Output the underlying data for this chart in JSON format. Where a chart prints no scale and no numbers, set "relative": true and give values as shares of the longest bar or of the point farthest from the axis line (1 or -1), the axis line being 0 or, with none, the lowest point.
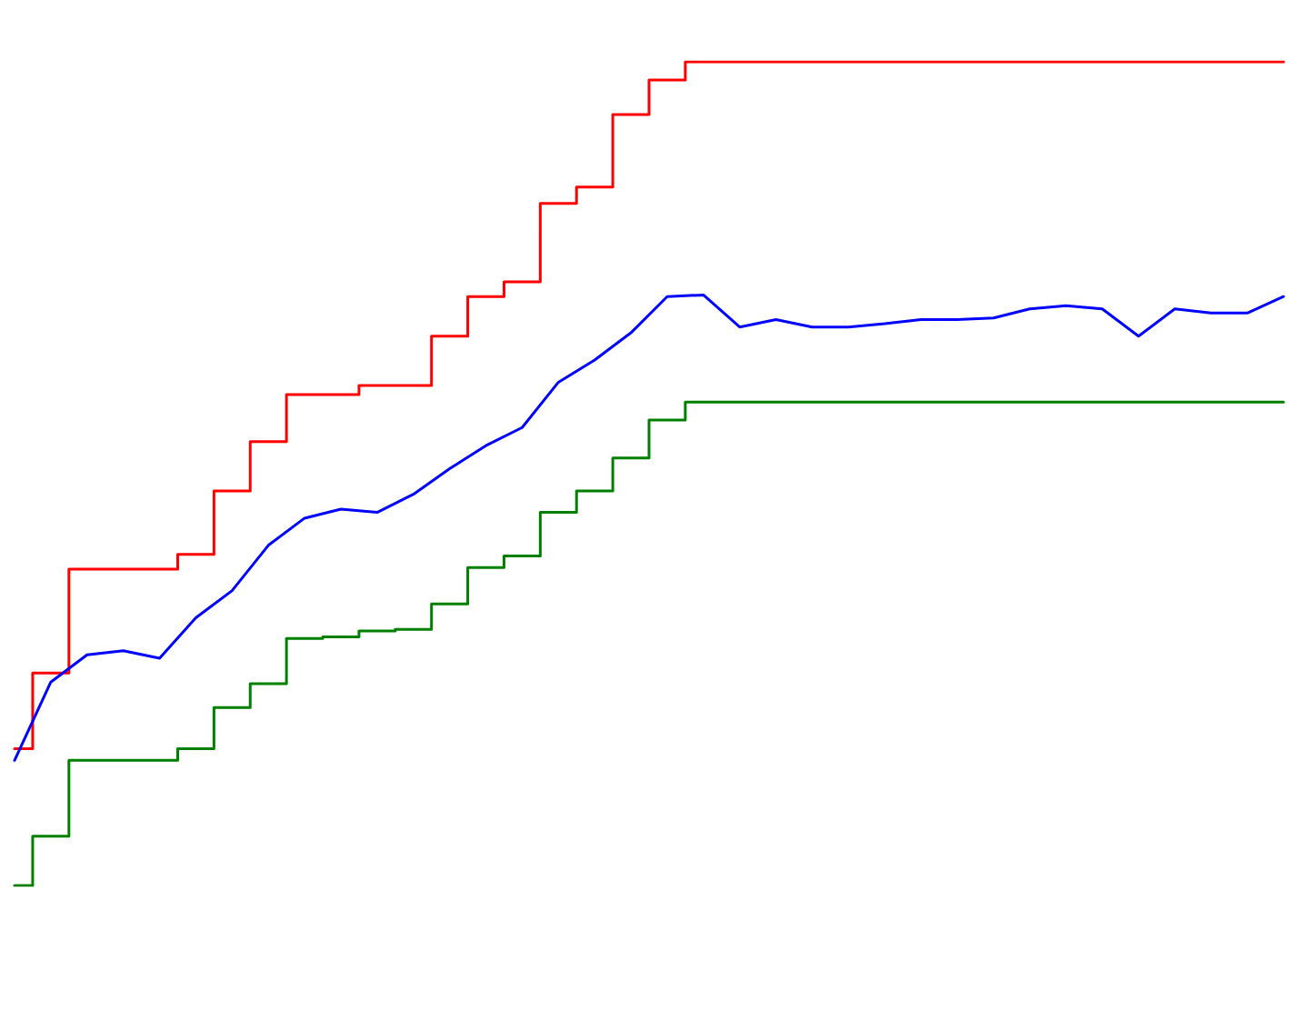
{
  "chart_data": {
    "type": "line",
    "relative": true,
    "grid": false,
    "marker": "none",
    "line_style": "solid",
    "categories": [
      null,
      null,
      null,
      null,
      null,
      null,
      null,
      null,
      null,
      null,
      null,
      null,
      null,
      null,
      null,
      null,
      null,
      null,
      null,
      null,
      null,
      null,
      null,
      null,
      null,
      null,
      null,
      null,
      null,
      null,
      null,
      null,
      null,
      null,
      null,
      null
    ],
    "series": [
      {
        "type": "step",
        "color": "#ff0000",
        "values": [
          0.166,
          0.258,
          0.384,
          0.384,
          0.384,
          0.402,
          0.479,
          0.539,
          0.596,
          0.596,
          0.607,
          0.607,
          0.667,
          0.715,
          0.733,
          0.828,
          0.848,
          0.936,
          0.978,
          1,
          1,
          1,
          1,
          1,
          1,
          1,
          1,
          1,
          1,
          1,
          1,
          1,
          1,
          1,
          1,
          1
        ]
      },
      {
        "color": "#0000ff",
        "values": [
          0.152,
          0.247,
          0.28,
          0.285,
          0.276,
          0.325,
          0.358,
          0.413,
          0.446,
          0.457,
          0.453,
          0.475,
          0.506,
          0.534,
          0.556,
          0.611,
          0.638,
          0.671,
          0.715,
          0.717,
          0.678,
          0.687,
          0.678,
          0.678,
          0.682,
          0.687,
          0.687,
          0.689,
          0.7,
          0.704,
          0.7,
          0.667,
          0.7,
          0.695,
          0.695,
          0.715
        ]
      },
      {
        "type": "step",
        "color": "#008000",
        "values": [
          0,
          0.06,
          0.152,
          0.152,
          0.152,
          0.166,
          0.216,
          0.245,
          0.3,
          0.302,
          0.309,
          0.311,
          0.342,
          0.386,
          0.4,
          0.453,
          0.479,
          0.519,
          0.565,
          0.587,
          0.587,
          0.587,
          0.587,
          0.587,
          0.587,
          0.587,
          0.587,
          0.587,
          0.587,
          0.587,
          0.587,
          0.587,
          0.587,
          0.587,
          0.587,
          0.587
        ]
      }
    ]
  }
}
